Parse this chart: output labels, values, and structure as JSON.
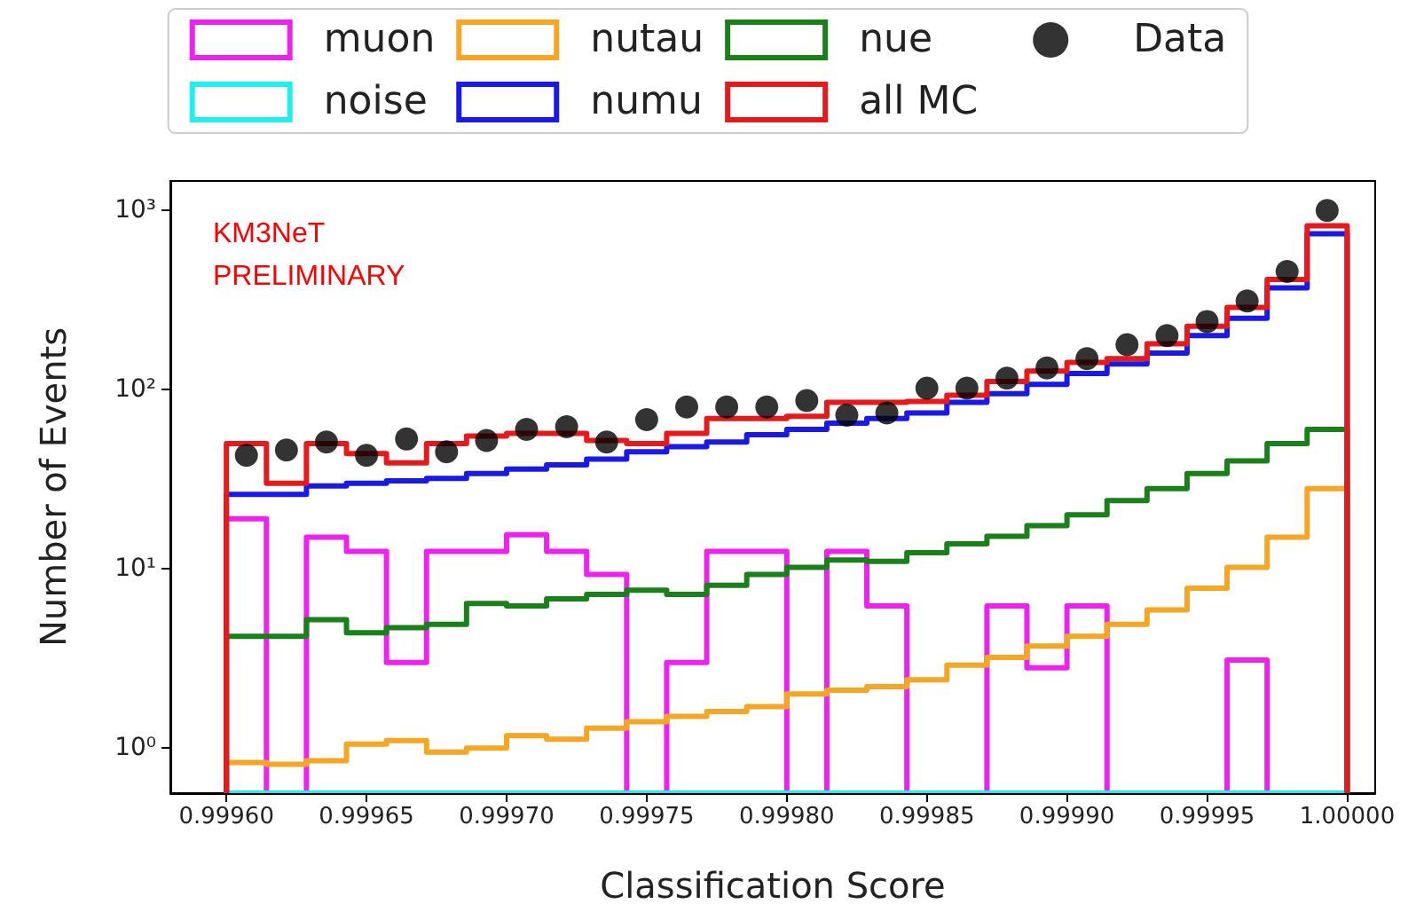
{
  "chart_data": {
    "type": "histogram",
    "xlabel": "Classification Score",
    "ylabel": "Number of Events",
    "annotations": [
      "KM3NeT\nPRELIMINARY"
    ],
    "bins": [
      0.9996,
      0.99961429,
      0.99962857,
      0.99964286,
      0.99965714,
      0.99967143,
      0.99968571,
      0.9997,
      0.99971429,
      0.99972857,
      0.99974286,
      0.99975714,
      0.99977143,
      0.99978571,
      0.9998,
      0.99981429,
      0.99982857,
      0.99984286,
      0.99985714,
      0.99987143,
      0.99988571,
      0.9999,
      0.99991429,
      0.99992857,
      0.99994286,
      0.99995714,
      0.99997143,
      0.99998571,
      1.0
    ],
    "series": [
      {
        "name": "muon",
        "color": "#ee22ee",
        "values": [
          19,
          null,
          15,
          12.5,
          3,
          12.5,
          12.5,
          15.5,
          12.5,
          9.3,
          null,
          3,
          12.5,
          12.5,
          null,
          12.5,
          6.2,
          null,
          null,
          6.2,
          2.8,
          6.2,
          null,
          null,
          null,
          3.1,
          null,
          null
        ]
      },
      {
        "name": "noise",
        "color": "#22eeee",
        "values": [
          null,
          null,
          null,
          null,
          null,
          null,
          null,
          null,
          null,
          null,
          null,
          null,
          null,
          null,
          null,
          null,
          null,
          null,
          null,
          null,
          null,
          null,
          null,
          null,
          null,
          null,
          null,
          null
        ]
      },
      {
        "name": "nutau",
        "color": "#f5a623",
        "values": [
          0.83,
          0.81,
          0.85,
          1.05,
          1.1,
          0.95,
          1.0,
          1.17,
          1.12,
          1.29,
          1.4,
          1.5,
          1.6,
          1.7,
          2.0,
          2.1,
          2.2,
          2.4,
          2.9,
          3.2,
          3.7,
          4.2,
          4.9,
          5.9,
          7.8,
          10.2,
          15,
          28
        ]
      },
      {
        "name": "numu",
        "color": "#1a1ae6",
        "values": [
          26,
          26,
          29,
          30,
          31,
          32,
          34,
          36,
          38,
          41,
          45,
          48,
          51,
          56,
          60,
          65,
          69,
          74,
          85,
          95,
          107,
          123,
          139,
          160,
          200,
          250,
          370,
          740
        ]
      },
      {
        "name": "nue",
        "color": "#1a801a",
        "values": [
          4.2,
          4.2,
          5.2,
          4.4,
          4.7,
          4.9,
          6.4,
          6.2,
          6.8,
          7.2,
          7.6,
          7.2,
          8.1,
          9.3,
          10.2,
          11.2,
          11.0,
          12.3,
          13.8,
          15.2,
          17.4,
          20,
          24,
          28,
          34,
          40,
          50,
          60
        ]
      },
      {
        "name": "all MC",
        "color": "#e61a1a",
        "values": [
          50,
          30,
          50,
          44,
          39,
          50,
          55,
          57,
          57,
          52,
          50,
          57,
          69,
          69,
          71,
          85,
          85,
          86,
          93,
          111,
          127,
          142,
          149,
          180,
          226,
          288,
          412,
          820
        ]
      },
      {
        "name": "Data",
        "type": "scatter",
        "color": "#000000",
        "x": [
          0.99960714,
          0.99962143,
          0.99963571,
          0.99965,
          0.99966429,
          0.99967857,
          0.99969286,
          0.99970714,
          0.99972143,
          0.99973571,
          0.99975,
          0.99976429,
          0.99977857,
          0.99979286,
          0.99980714,
          0.99982143,
          0.99983571,
          0.99985,
          0.99986429,
          0.99987857,
          0.99989286,
          0.99990714,
          0.99992143,
          0.99993571,
          0.99995,
          0.99996429,
          0.99997857,
          0.99999286
        ],
        "values": [
          43,
          46,
          51,
          43,
          53,
          45,
          52,
          60,
          62,
          51,
          68,
          80,
          80,
          80,
          87,
          72,
          74,
          102,
          102,
          116,
          132,
          149,
          178,
          200,
          240,
          312,
          457,
          1000
        ]
      }
    ],
    "xlim": [
      0.99958,
      1.00001
    ],
    "xticks": [
      {
        "value": 0.9996,
        "label": "0.99960"
      },
      {
        "value": 0.99965,
        "label": "0.99965"
      },
      {
        "value": 0.9997,
        "label": "0.99970"
      },
      {
        "value": 0.99975,
        "label": "0.99975"
      },
      {
        "value": 0.9998,
        "label": "0.99980"
      },
      {
        "value": 0.99985,
        "label": "0.99985"
      },
      {
        "value": 0.9999,
        "label": "0.99990"
      },
      {
        "value": 0.99995,
        "label": "0.99995"
      },
      {
        "value": 1.0,
        "label": "1.00000"
      }
    ],
    "ylim": [
      0.56,
      1460
    ],
    "yticks": [
      {
        "value": 1,
        "label": "10⁰"
      },
      {
        "value": 10,
        "label": "10¹"
      },
      {
        "value": 100,
        "label": "10²"
      },
      {
        "value": 1000,
        "label": "10³"
      }
    ],
    "log": "y",
    "legend": "top",
    "marker": "circle"
  }
}
